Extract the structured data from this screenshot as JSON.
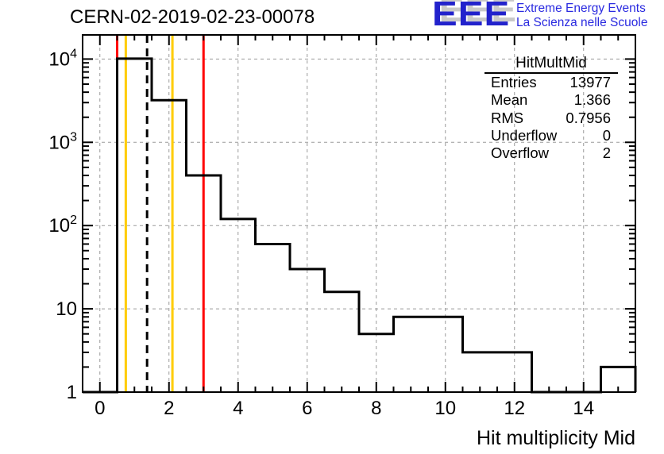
{
  "logo": {
    "letters": "EEE",
    "line1": "Extreme Energy Events",
    "line2": "La Scienza nelle Scuole",
    "letters_color": "#2222cc",
    "text_color": "#2a2ae0",
    "shadow_color": "#c9c9c9"
  },
  "stats": {
    "title": "HitMultMid",
    "rows": [
      {
        "label": "Entries",
        "value": "13977"
      },
      {
        "label": "Mean",
        "value": "1.366"
      },
      {
        "label": "RMS",
        "value": "0.7956"
      },
      {
        "label": "Underflow",
        "value": "0"
      },
      {
        "label": "Overflow",
        "value": "2"
      }
    ]
  },
  "chart_data": {
    "type": "bar",
    "title": "CERN-02-2019-02-23-00078",
    "xlabel": "Hit multiplicity Mid",
    "ylabel": "",
    "y_scale": "log",
    "x_range": [
      -0.5,
      15.5
    ],
    "y_range": [
      1,
      19500
    ],
    "grid": true,
    "bin_width": 1,
    "bin_centers": [
      0,
      1,
      2,
      3,
      4,
      5,
      6,
      7,
      8,
      9,
      10,
      11,
      12,
      13,
      14,
      15
    ],
    "counts": [
      0,
      10113,
      3207,
      400,
      120,
      60,
      30,
      16,
      5,
      8,
      8,
      3,
      3,
      0,
      0,
      2
    ],
    "x_ticks_major": [
      0,
      2,
      4,
      6,
      8,
      10,
      12,
      14
    ],
    "x_minor_step": 0.5,
    "y_ticks": [
      {
        "value": 1,
        "base": "1",
        "exp": ""
      },
      {
        "value": 10,
        "base": "10",
        "exp": ""
      },
      {
        "value": 100,
        "base": "10",
        "exp": "2"
      },
      {
        "value": 1000,
        "base": "10",
        "exp": "3"
      },
      {
        "value": 10000,
        "base": "10",
        "exp": "4"
      }
    ],
    "marker_lines": [
      {
        "value": 0.5,
        "color": "#ff0000",
        "style": "solid",
        "name": "error-threshold-low"
      },
      {
        "value": 0.75,
        "color": "#ffcc00",
        "style": "solid",
        "name": "warning-threshold-low"
      },
      {
        "value": 1.366,
        "color": "#000000",
        "style": "dashed",
        "name": "mean-marker-line"
      },
      {
        "value": 2.1,
        "color": "#ffcc00",
        "style": "solid",
        "name": "warning-threshold-high"
      },
      {
        "value": 3.0,
        "color": "#ff0000",
        "style": "solid",
        "name": "error-threshold-high"
      }
    ],
    "colors": {
      "hist": "#000000",
      "grid": "#9a9a9a",
      "frame": "#000000"
    }
  }
}
